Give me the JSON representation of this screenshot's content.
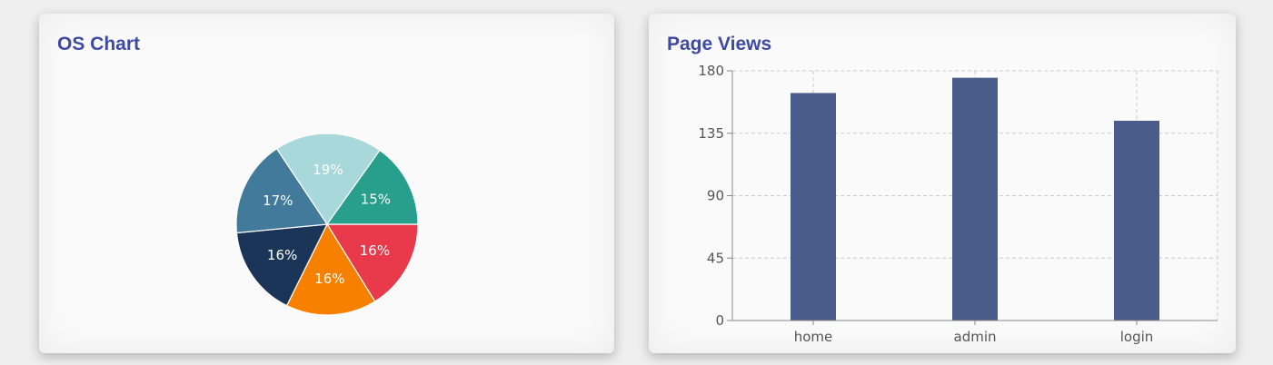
{
  "os_card": {
    "title": "OS Chart"
  },
  "pv_card": {
    "title": "Page Views"
  },
  "colors": {
    "title": "#3f4aa3",
    "pie": [
      "#e83a4a",
      "#f78000",
      "#1b3558",
      "#427a9c",
      "#a8d8da",
      "#289e8c"
    ],
    "bar": "#4a5d8a",
    "grid": "#cccccc",
    "axis": "#888888"
  },
  "chart_data": [
    {
      "type": "pie",
      "title": "OS Chart",
      "slices": [
        {
          "label": "16%",
          "value": 16
        },
        {
          "label": "16%",
          "value": 16
        },
        {
          "label": "16%",
          "value": 16
        },
        {
          "label": "17%",
          "value": 17
        },
        {
          "label": "19%",
          "value": 19
        },
        {
          "label": "15%",
          "value": 15
        }
      ]
    },
    {
      "type": "bar",
      "title": "Page Views",
      "categories": [
        "home",
        "admin",
        "login"
      ],
      "values": [
        164,
        175,
        144
      ],
      "yticks": [
        0,
        45,
        90,
        135,
        180
      ],
      "ylim": [
        0,
        180
      ],
      "grid": true
    }
  ]
}
